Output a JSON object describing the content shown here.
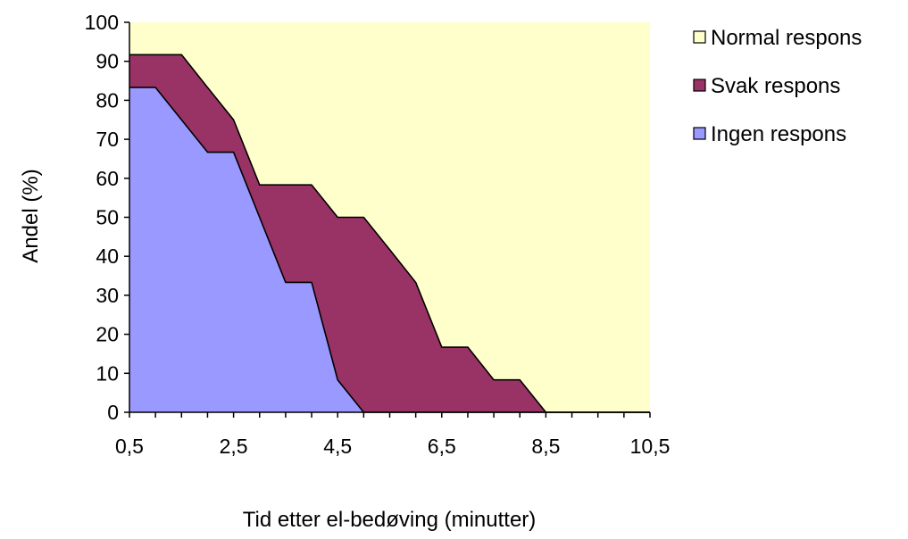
{
  "chart_data": {
    "type": "area",
    "stacked": true,
    "xlabel": "Tid etter el-bedøving (minutter)",
    "ylabel": "Andel (%)",
    "x_tick_labels": [
      "0,5",
      "2,5",
      "4,5",
      "6,5",
      "8,5",
      "10,5"
    ],
    "y_tick_labels": [
      "0",
      "10",
      "20",
      "30",
      "40",
      "50",
      "60",
      "70",
      "80",
      "90",
      "100"
    ],
    "xlim": [
      0.5,
      10.5
    ],
    "ylim": [
      0,
      100
    ],
    "x": [
      0.5,
      1,
      1.5,
      2,
      2.5,
      3,
      3.5,
      4,
      4.5,
      5,
      5.5,
      6,
      6.5,
      7,
      7.5,
      8,
      8.5,
      9,
      9.5,
      10,
      10.5
    ],
    "series": [
      {
        "name": "Ingen respons",
        "color": "#9999ff",
        "values": [
          83.3,
          83.3,
          75,
          66.7,
          66.7,
          50,
          33.3,
          33.3,
          8.3,
          0,
          0,
          0,
          0,
          0,
          0,
          0,
          0,
          0,
          0,
          0,
          0
        ]
      },
      {
        "name": "Svak respons",
        "color": "#993366",
        "values": [
          8.4,
          8.4,
          16.7,
          16.6,
          8.3,
          8.3,
          25,
          25,
          41.7,
          50,
          41.7,
          33.3,
          16.7,
          16.7,
          8.3,
          8.3,
          0,
          0,
          0,
          0,
          0
        ]
      },
      {
        "name": "Normal respons",
        "color": "#ffffcc",
        "values": [
          8.3,
          8.3,
          8.3,
          16.7,
          25,
          41.7,
          41.7,
          41.7,
          50,
          50,
          58.3,
          66.7,
          83.3,
          83.3,
          91.7,
          91.7,
          100,
          100,
          100,
          100,
          100
        ]
      }
    ],
    "legend_position": "right",
    "grid": false
  }
}
